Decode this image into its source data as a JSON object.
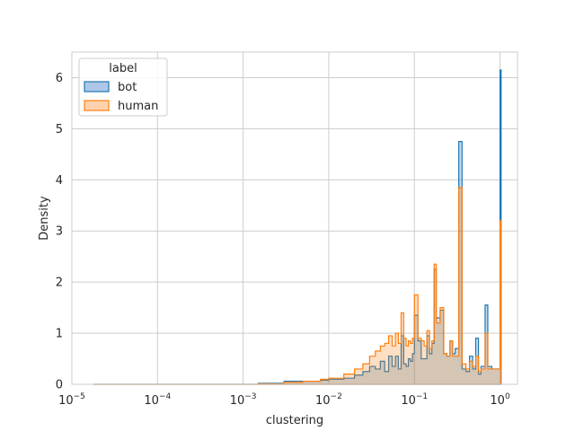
{
  "chart_data": {
    "type": "histogram",
    "xscale": "log",
    "xlabel": "clustering",
    "ylabel": "Density",
    "xlim": [
      1e-05,
      1.6
    ],
    "ylim": [
      0,
      6.5
    ],
    "grid": true,
    "x_ticks": [
      {
        "value": 1e-05,
        "base": "10",
        "exp": "−5"
      },
      {
        "value": 0.0001,
        "base": "10",
        "exp": "−4"
      },
      {
        "value": 0.001,
        "base": "10",
        "exp": "−3"
      },
      {
        "value": 0.01,
        "base": "10",
        "exp": "−2"
      },
      {
        "value": 0.1,
        "base": "10",
        "exp": "−1"
      },
      {
        "value": 1,
        "base": "10",
        "exp": "0"
      }
    ],
    "y_ticks": [
      "0",
      "1",
      "2",
      "3",
      "4",
      "5",
      "6"
    ],
    "legend": {
      "title": "label",
      "placement": "upper-left",
      "entries": [
        {
          "label": "bot",
          "edge": "#1f77b4",
          "fill": "#aec7e8"
        },
        {
          "label": "human",
          "edge": "#ff7f0e",
          "fill": "#ffd2ad"
        }
      ]
    },
    "series": [
      {
        "name": "bot",
        "color": "#1f77b4",
        "points": [
          [
            1.8e-05,
            0.0
          ],
          [
            0.0015,
            0.02
          ],
          [
            0.003,
            0.06
          ],
          [
            0.005,
            0.06
          ],
          [
            0.008,
            0.08
          ],
          [
            0.01,
            0.1
          ],
          [
            0.015,
            0.12
          ],
          [
            0.02,
            0.18
          ],
          [
            0.025,
            0.25
          ],
          [
            0.03,
            0.35
          ],
          [
            0.035,
            0.3
          ],
          [
            0.04,
            0.45
          ],
          [
            0.045,
            0.25
          ],
          [
            0.05,
            0.55
          ],
          [
            0.055,
            0.35
          ],
          [
            0.06,
            0.55
          ],
          [
            0.065,
            0.3
          ],
          [
            0.07,
            0.95
          ],
          [
            0.075,
            0.4
          ],
          [
            0.08,
            0.35
          ],
          [
            0.085,
            0.5
          ],
          [
            0.09,
            0.45
          ],
          [
            0.095,
            0.6
          ],
          [
            0.1,
            1.35
          ],
          [
            0.11,
            0.85
          ],
          [
            0.12,
            0.5
          ],
          [
            0.13,
            0.5
          ],
          [
            0.14,
            0.95
          ],
          [
            0.15,
            0.6
          ],
          [
            0.16,
            0.8
          ],
          [
            0.17,
            2.25
          ],
          [
            0.18,
            1.3
          ],
          [
            0.2,
            1.45
          ],
          [
            0.22,
            0.6
          ],
          [
            0.24,
            0.55
          ],
          [
            0.26,
            0.85
          ],
          [
            0.28,
            0.6
          ],
          [
            0.3,
            0.7
          ],
          [
            0.33,
            4.75
          ],
          [
            0.36,
            0.3
          ],
          [
            0.4,
            0.25
          ],
          [
            0.44,
            0.55
          ],
          [
            0.48,
            0.3
          ],
          [
            0.52,
            0.9
          ],
          [
            0.56,
            0.2
          ],
          [
            0.6,
            0.35
          ],
          [
            0.67,
            1.55
          ],
          [
            0.72,
            0.35
          ],
          [
            0.8,
            0.3
          ],
          [
            1.0,
            6.15
          ]
        ]
      },
      {
        "name": "human",
        "color": "#ff7f0e",
        "points": [
          [
            1.8e-05,
            0.0
          ],
          [
            0.0015,
            0.01
          ],
          [
            0.003,
            0.04
          ],
          [
            0.005,
            0.06
          ],
          [
            0.008,
            0.1
          ],
          [
            0.01,
            0.12
          ],
          [
            0.015,
            0.2
          ],
          [
            0.02,
            0.3
          ],
          [
            0.025,
            0.4
          ],
          [
            0.03,
            0.55
          ],
          [
            0.035,
            0.65
          ],
          [
            0.04,
            0.75
          ],
          [
            0.045,
            0.8
          ],
          [
            0.05,
            0.95
          ],
          [
            0.055,
            0.75
          ],
          [
            0.06,
            1.0
          ],
          [
            0.065,
            0.8
          ],
          [
            0.07,
            1.4
          ],
          [
            0.075,
            0.9
          ],
          [
            0.08,
            0.75
          ],
          [
            0.085,
            0.85
          ],
          [
            0.09,
            0.8
          ],
          [
            0.095,
            0.9
          ],
          [
            0.1,
            1.75
          ],
          [
            0.11,
            0.9
          ],
          [
            0.12,
            0.85
          ],
          [
            0.13,
            0.75
          ],
          [
            0.14,
            1.05
          ],
          [
            0.15,
            0.7
          ],
          [
            0.16,
            0.85
          ],
          [
            0.17,
            2.35
          ],
          [
            0.18,
            1.2
          ],
          [
            0.2,
            1.5
          ],
          [
            0.22,
            0.6
          ],
          [
            0.24,
            0.55
          ],
          [
            0.26,
            0.85
          ],
          [
            0.28,
            0.55
          ],
          [
            0.3,
            0.55
          ],
          [
            0.33,
            3.85
          ],
          [
            0.36,
            0.4
          ],
          [
            0.4,
            0.3
          ],
          [
            0.44,
            0.45
          ],
          [
            0.48,
            0.35
          ],
          [
            0.52,
            0.55
          ],
          [
            0.56,
            0.25
          ],
          [
            0.6,
            0.3
          ],
          [
            0.67,
            1.0
          ],
          [
            0.72,
            0.3
          ],
          [
            0.8,
            0.3
          ],
          [
            1.0,
            3.2
          ]
        ]
      }
    ]
  }
}
